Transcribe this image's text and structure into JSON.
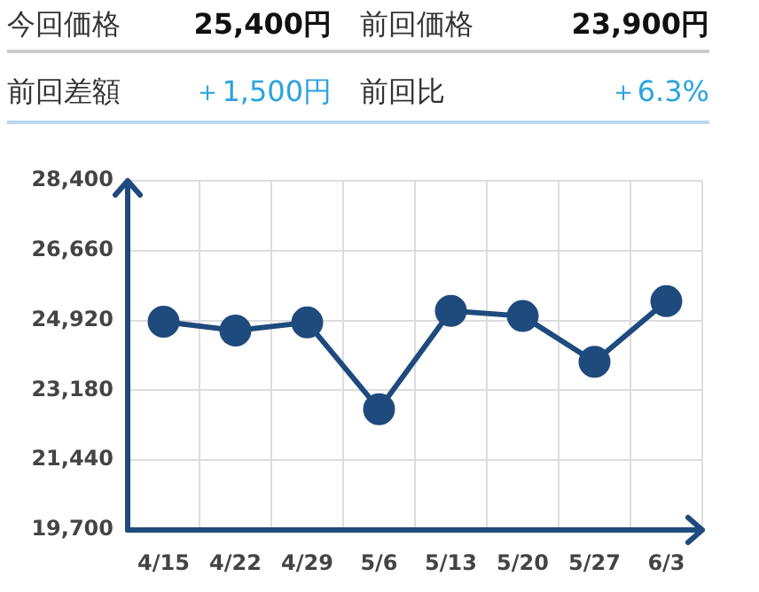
{
  "chart_data": {
    "type": "line",
    "annotations": [
      "今回価格",
      "25,400円",
      "前回価格",
      "23,900円",
      "前回差額",
      "＋1,500円",
      "前回比",
      "＋6.3%"
    ],
    "categories": [
      "4/15",
      "4/22",
      "4/29",
      "5/6",
      "5/13",
      "5/20",
      "5/27",
      "6/3"
    ],
    "series": [
      {
        "color": "#1f4a7d",
        "values": [
          24890,
          24670,
          24870,
          22710,
          25160,
          25030,
          23890,
          25400
        ]
      }
    ],
    "ylim": [
      19700,
      28400
    ],
    "yticks": [
      {
        "value": 19700,
        "label": "19,700"
      },
      {
        "value": 21440,
        "label": "21,440"
      },
      {
        "value": 23180,
        "label": "23,180"
      },
      {
        "value": 24920,
        "label": "24,920"
      },
      {
        "value": 26660,
        "label": "26,660"
      },
      {
        "value": 28400,
        "label": "28,400"
      }
    ],
    "grid": true,
    "legend": false,
    "marker": "circle",
    "line_style": "solid"
  }
}
